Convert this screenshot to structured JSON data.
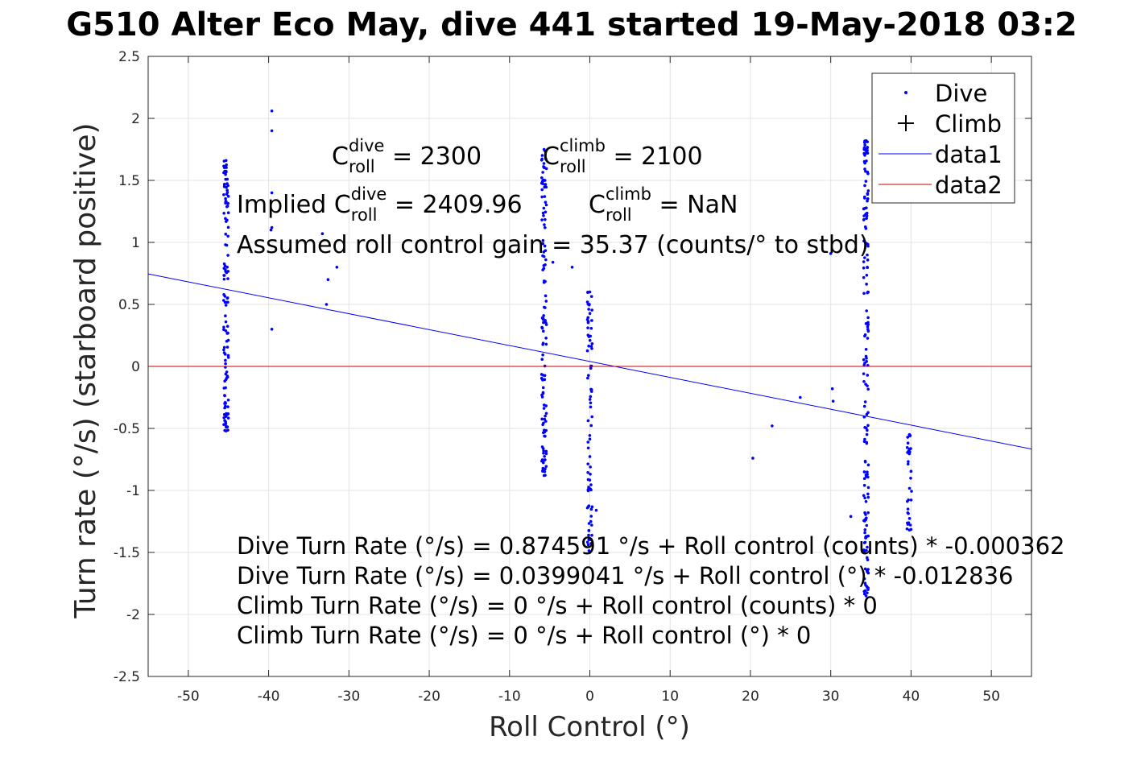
{
  "chart_data": {
    "type": "scatter",
    "title": "G510 Alter Eco May, dive 441 started 19-May-2018 03:2",
    "xlabel": "Roll Control (°)",
    "ylabel": "Turn rate (°/s) (starboard positive)",
    "xlim": [
      -55,
      55
    ],
    "ylim": [
      -2.5,
      2.5
    ],
    "xticks": [
      -50,
      -40,
      -30,
      -20,
      -10,
      0,
      10,
      20,
      30,
      40,
      50
    ],
    "yticks": [
      2.5,
      2,
      1.5,
      1,
      0.5,
      0,
      -0.5,
      -1,
      -1.5,
      -2,
      -2.5
    ],
    "grid": true,
    "legend_position": "top-right",
    "legend": [
      {
        "label": "Dive",
        "marker": "point",
        "color": "#0000ff"
      },
      {
        "label": "Climb",
        "marker": "plus",
        "color": "#000000"
      },
      {
        "label": "data1",
        "marker": "line",
        "color": "#0000ff"
      },
      {
        "label": "data2",
        "marker": "line",
        "color": "#cc0000"
      }
    ],
    "annotations": {
      "c_dive": {
        "base": "C",
        "sup": "dive",
        "sub": "roll",
        "value": " = 2300"
      },
      "c_climb": {
        "base": "C",
        "sup": "climb",
        "sub": "roll",
        "value": " = 2100"
      },
      "implied_dive": {
        "prefix": "Implied C",
        "sup": "dive",
        "sub": "roll",
        "value": " = 2409.96"
      },
      "implied_climb": {
        "base": "C",
        "sup": "climb",
        "sub": "roll",
        "value": " = NaN"
      },
      "gain": "Assumed roll control gain = 35.37 (counts/° to stbd)",
      "equations": [
        "Dive Turn Rate (°/s) = 0.874591 °/s + Roll control (counts) * -0.000362",
        "Dive Turn Rate (°/s) = 0.0399041 °/s + Roll control (°) * -0.012836",
        "Climb Turn Rate (°/s) = 0 °/s + Roll control (counts) * 0",
        "Climb Turn Rate (°/s) = 0 °/s + Roll control (°) * 0"
      ]
    },
    "series": [
      {
        "name": "Dive",
        "type": "scatter",
        "color": "#0000ff",
        "clusters": [
          {
            "x": -45.3,
            "y_min": -0.52,
            "y_max": 1.66,
            "count": 120
          },
          {
            "x": -5.7,
            "y_min": -0.88,
            "y_max": 1.75,
            "count": 120
          },
          {
            "x": 0.0,
            "y_min": -1.5,
            "y_max": 0.6,
            "count": 80
          },
          {
            "x": 34.4,
            "y_min": -1.85,
            "y_max": 1.82,
            "count": 160
          },
          {
            "x": 39.8,
            "y_min": -1.32,
            "y_max": -0.55,
            "count": 30
          }
        ],
        "points": [
          [
            -39.6,
            2.06
          ],
          [
            -39.6,
            1.9
          ],
          [
            -39.6,
            1.4
          ],
          [
            -39.6,
            1.12
          ],
          [
            -39.7,
            1.1
          ],
          [
            -39.6,
            0.3
          ],
          [
            -33.3,
            1.07
          ],
          [
            -32.8,
            0.5
          ],
          [
            -32.6,
            0.7
          ],
          [
            -31.5,
            0.8
          ],
          [
            -4.6,
            0.84
          ],
          [
            -2.2,
            0.8
          ],
          [
            0.8,
            -1.16
          ],
          [
            20.3,
            -0.74
          ],
          [
            22.7,
            -0.48
          ],
          [
            26.2,
            -0.25
          ],
          [
            30.0,
            0.91
          ],
          [
            30.2,
            -0.18
          ],
          [
            30.3,
            -0.28
          ],
          [
            32.5,
            -1.21
          ]
        ]
      },
      {
        "name": "data1",
        "type": "line",
        "color": "#0000ff",
        "intercept": 0.0399041,
        "slope": -0.012836,
        "x": [
          -55,
          55
        ]
      },
      {
        "name": "data2",
        "type": "line",
        "color": "#cc0000",
        "intercept": 0,
        "slope": 0,
        "x": [
          -55,
          55
        ]
      }
    ]
  }
}
